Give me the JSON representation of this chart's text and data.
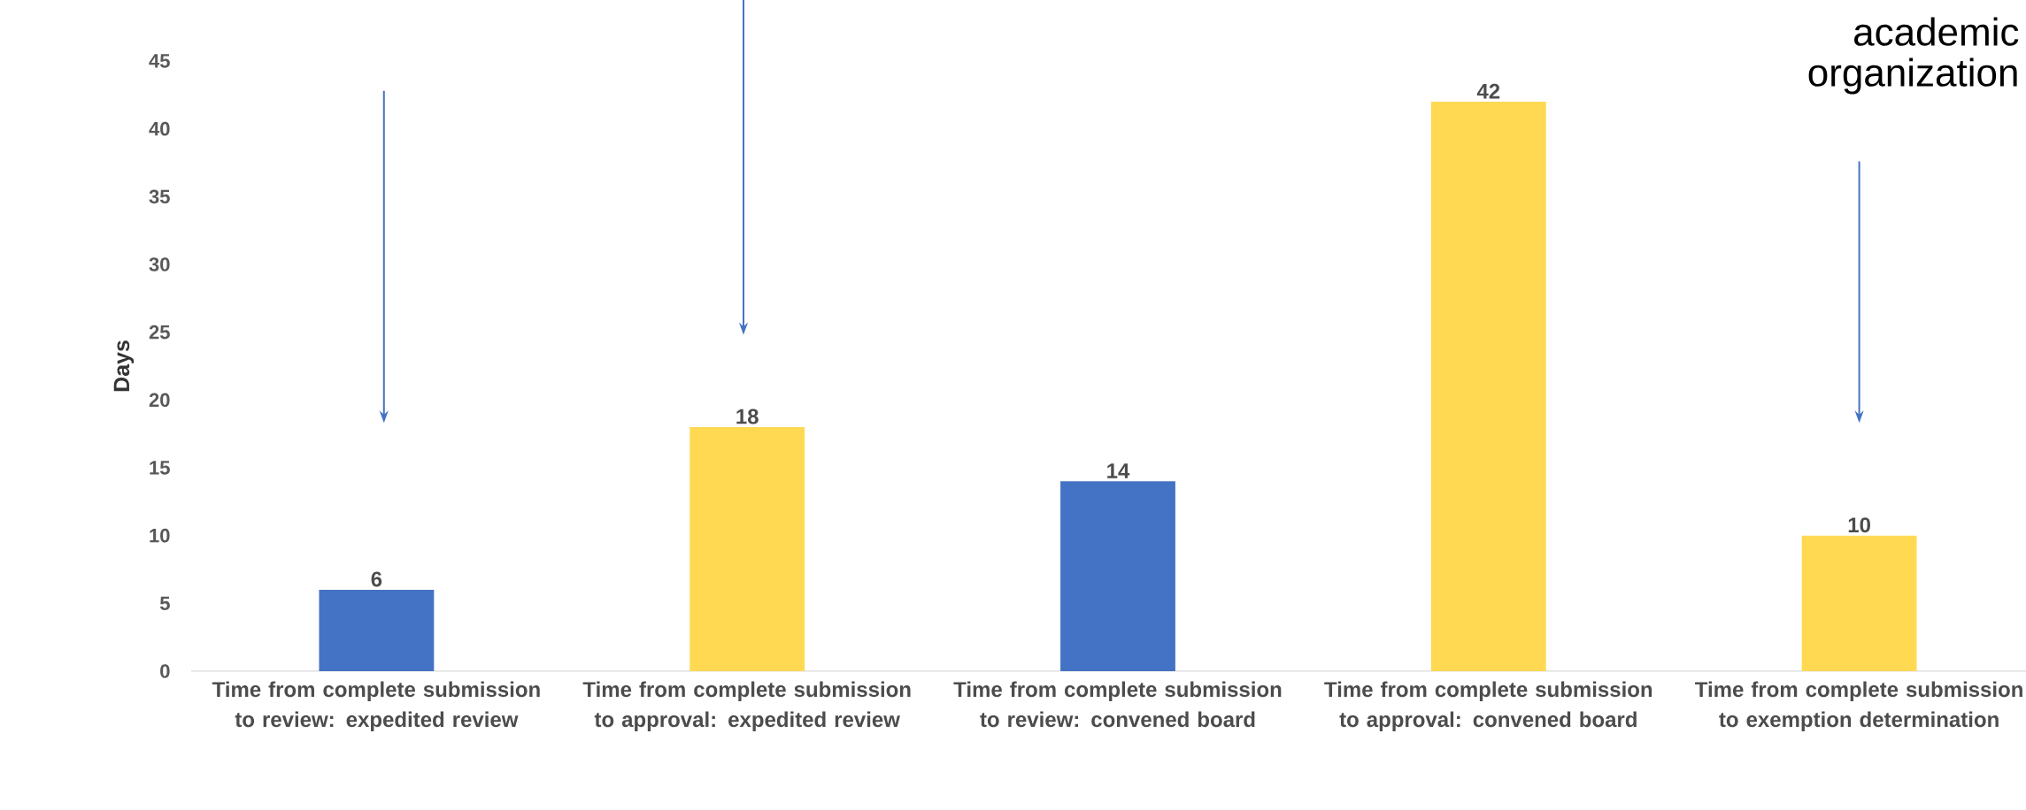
{
  "chart_data": {
    "type": "bar",
    "ylabel": "Days",
    "categories": [
      "Time from complete submission to review: expedited review",
      "Time from complete submission to approval: expedited review",
      "Time from complete submission to review: convened board",
      "Time from complete submission to approval: convened board",
      "Time from complete submission to exemption determination"
    ],
    "values": [
      6,
      18,
      14,
      42,
      10
    ],
    "colors": [
      "#4472c4",
      "#ffd952",
      "#4472c4",
      "#ffd952",
      "#ffd952"
    ],
    "ylim": [
      0,
      45
    ],
    "yticks": [
      0,
      5,
      10,
      15,
      20,
      25,
      30,
      35,
      40,
      45
    ],
    "data_labels": true,
    "grid": false,
    "annotations": [
      "academic organization"
    ]
  }
}
